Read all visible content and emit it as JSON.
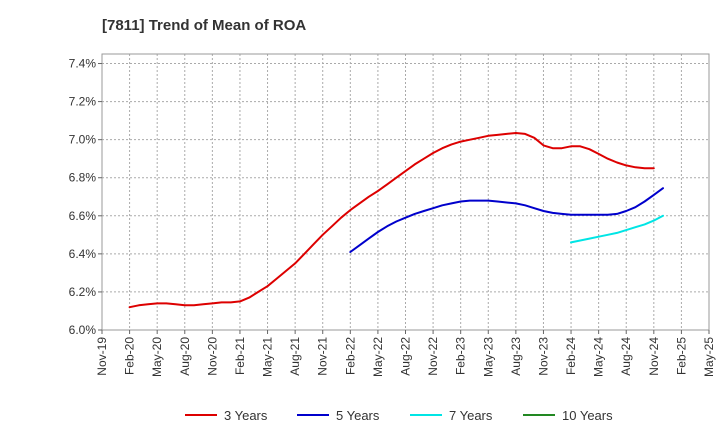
{
  "chart_data": {
    "type": "line",
    "title": "[7811]  Trend of Mean of ROA",
    "xlabel": "",
    "ylabel": "",
    "x_ticks": [
      "Nov-19",
      "Feb-20",
      "May-20",
      "Aug-20",
      "Nov-20",
      "Feb-21",
      "May-21",
      "Aug-21",
      "Nov-21",
      "Feb-22",
      "May-22",
      "Aug-22",
      "Nov-22",
      "Feb-23",
      "May-23",
      "Aug-23",
      "Nov-23",
      "Feb-24",
      "May-24",
      "Aug-24",
      "Nov-24",
      "Feb-25",
      "May-25"
    ],
    "y_ticks": [
      "6.0%",
      "6.2%",
      "6.4%",
      "6.6%",
      "6.8%",
      "7.0%",
      "7.2%",
      "7.4%"
    ],
    "ylim": [
      6.0,
      7.45
    ],
    "grid": true,
    "legend_position": "bottom",
    "series": [
      {
        "name": "3 Years",
        "color": "#dd0000",
        "points": [
          [
            "Feb-20",
            6.12
          ],
          [
            "Mar-20",
            6.13
          ],
          [
            "Apr-20",
            6.135
          ],
          [
            "May-20",
            6.14
          ],
          [
            "Jun-20",
            6.14
          ],
          [
            "Jul-20",
            6.135
          ],
          [
            "Aug-20",
            6.13
          ],
          [
            "Sep-20",
            6.13
          ],
          [
            "Oct-20",
            6.135
          ],
          [
            "Nov-20",
            6.14
          ],
          [
            "Dec-20",
            6.145
          ],
          [
            "Jan-21",
            6.145
          ],
          [
            "Feb-21",
            6.15
          ],
          [
            "Mar-21",
            6.17
          ],
          [
            "Apr-21",
            6.2
          ],
          [
            "May-21",
            6.23
          ],
          [
            "Jun-21",
            6.27
          ],
          [
            "Jul-21",
            6.31
          ],
          [
            "Aug-21",
            6.35
          ],
          [
            "Sep-21",
            6.4
          ],
          [
            "Oct-21",
            6.45
          ],
          [
            "Nov-21",
            6.5
          ],
          [
            "Dec-21",
            6.545
          ],
          [
            "Jan-22",
            6.59
          ],
          [
            "Feb-22",
            6.63
          ],
          [
            "Mar-22",
            6.665
          ],
          [
            "Apr-22",
            6.7
          ],
          [
            "May-22",
            6.73
          ],
          [
            "Jun-22",
            6.765
          ],
          [
            "Jul-22",
            6.8
          ],
          [
            "Aug-22",
            6.835
          ],
          [
            "Sep-22",
            6.87
          ],
          [
            "Oct-22",
            6.9
          ],
          [
            "Nov-22",
            6.93
          ],
          [
            "Dec-22",
            6.955
          ],
          [
            "Jan-23",
            6.975
          ],
          [
            "Feb-23",
            6.99
          ],
          [
            "Mar-23",
            7.0
          ],
          [
            "Apr-23",
            7.01
          ],
          [
            "May-23",
            7.02
          ],
          [
            "Jun-23",
            7.025
          ],
          [
            "Jul-23",
            7.03
          ],
          [
            "Aug-23",
            7.035
          ],
          [
            "Sep-23",
            7.03
          ],
          [
            "Oct-23",
            7.01
          ],
          [
            "Nov-23",
            6.97
          ],
          [
            "Dec-23",
            6.955
          ],
          [
            "Jan-24",
            6.955
          ],
          [
            "Feb-24",
            6.965
          ],
          [
            "Mar-24",
            6.965
          ],
          [
            "Apr-24",
            6.95
          ],
          [
            "May-24",
            6.925
          ],
          [
            "Jun-24",
            6.9
          ],
          [
            "Jul-24",
            6.88
          ],
          [
            "Aug-24",
            6.865
          ],
          [
            "Sep-24",
            6.855
          ],
          [
            "Oct-24",
            6.85
          ],
          [
            "Nov-24",
            6.85
          ]
        ]
      },
      {
        "name": "5 Years",
        "color": "#0000cc",
        "points": [
          [
            "Feb-22",
            6.41
          ],
          [
            "Mar-22",
            6.445
          ],
          [
            "Apr-22",
            6.48
          ],
          [
            "May-22",
            6.515
          ],
          [
            "Jun-22",
            6.545
          ],
          [
            "Jul-22",
            6.57
          ],
          [
            "Aug-22",
            6.59
          ],
          [
            "Sep-22",
            6.61
          ],
          [
            "Oct-22",
            6.625
          ],
          [
            "Nov-22",
            6.64
          ],
          [
            "Dec-22",
            6.655
          ],
          [
            "Jan-23",
            6.665
          ],
          [
            "Feb-23",
            6.675
          ],
          [
            "Mar-23",
            6.68
          ],
          [
            "Apr-23",
            6.68
          ],
          [
            "May-23",
            6.68
          ],
          [
            "Jun-23",
            6.675
          ],
          [
            "Jul-23",
            6.67
          ],
          [
            "Aug-23",
            6.665
          ],
          [
            "Sep-23",
            6.655
          ],
          [
            "Oct-23",
            6.64
          ],
          [
            "Nov-23",
            6.625
          ],
          [
            "Dec-23",
            6.615
          ],
          [
            "Jan-24",
            6.61
          ],
          [
            "Feb-24",
            6.605
          ],
          [
            "Mar-24",
            6.605
          ],
          [
            "Apr-24",
            6.605
          ],
          [
            "May-24",
            6.605
          ],
          [
            "Jun-24",
            6.605
          ],
          [
            "Jul-24",
            6.61
          ],
          [
            "Aug-24",
            6.625
          ],
          [
            "Sep-24",
            6.645
          ],
          [
            "Oct-24",
            6.675
          ],
          [
            "Nov-24",
            6.71
          ],
          [
            "Dec-24",
            6.745
          ]
        ]
      },
      {
        "name": "7 Years",
        "color": "#00e5e5",
        "points": [
          [
            "Feb-24",
            6.46
          ],
          [
            "Mar-24",
            6.47
          ],
          [
            "Apr-24",
            6.48
          ],
          [
            "May-24",
            6.49
          ],
          [
            "Jun-24",
            6.5
          ],
          [
            "Jul-24",
            6.51
          ],
          [
            "Aug-24",
            6.525
          ],
          [
            "Sep-24",
            6.54
          ],
          [
            "Oct-24",
            6.555
          ],
          [
            "Nov-24",
            6.575
          ],
          [
            "Dec-24",
            6.6
          ]
        ]
      },
      {
        "name": "10 Years",
        "color": "#228822",
        "points": []
      }
    ]
  }
}
